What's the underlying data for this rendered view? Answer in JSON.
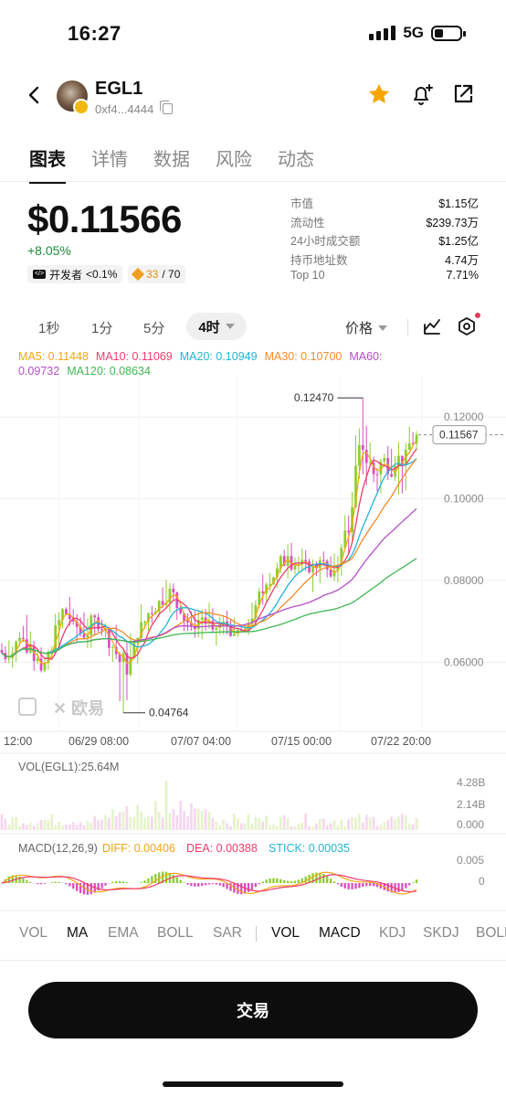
{
  "status_bar": {
    "time": "16:27",
    "network": "5G"
  },
  "token": {
    "name": "EGL1",
    "address": "0xf4...4444"
  },
  "tabs": [
    "图表",
    "详情",
    "数据",
    "风险",
    "动态"
  ],
  "price": {
    "value": "$0.11566",
    "change": "+8.05%"
  },
  "badges": {
    "dev_label": "开发者",
    "dev_value": "<0.1%",
    "holders_count": "33",
    "holders_total": "/ 70"
  },
  "stats": [
    {
      "label": "市值",
      "value": "$1.15亿"
    },
    {
      "label": "流动性",
      "value": "$239.73万"
    },
    {
      "label": "24小时成交额",
      "value": "$1.25亿"
    },
    {
      "label": "持币地址数",
      "value": "4.74万"
    },
    {
      "label": "Top 10",
      "value": "7.71%"
    }
  ],
  "intervals": [
    "1秒",
    "1分",
    "5分"
  ],
  "active_interval": "4时",
  "price_select": "价格",
  "ma_legend": {
    "ma5": "MA5: 0.11448",
    "ma10": "MA10: 0.11069",
    "ma20": "MA20: 0.10949",
    "ma30": "MA30: 0.10700",
    "ma60": "MA60: 0.09732",
    "ma120": "MA120: 0.08634"
  },
  "colors": {
    "ma5": "#f2a516",
    "ma10": "#ef3c6c",
    "ma20": "#23b4d6",
    "ma30": "#f28c28",
    "ma60": "#b44fc7",
    "ma120": "#3fb850",
    "up": "#8ccf2f",
    "down": "#d94fc0"
  },
  "chart_data": {
    "type": "candlestick",
    "y_ticks": [
      "0.12000",
      "0.10000",
      "0.08000",
      "0.06000"
    ],
    "x_ticks": [
      "12:00",
      "06/29 08:00",
      "07/07 04:00",
      "07/15 00:00",
      "07/22 20:00"
    ],
    "ylim": [
      0.044,
      0.129
    ],
    "max_label": "0.12470",
    "min_label": "0.04764",
    "current_label": "0.11567",
    "max": 0.1247,
    "min": 0.04764,
    "current": 0.11567,
    "ohlc_approx": [
      [
        0.063,
        0.066,
        0.059,
        0.061
      ],
      [
        0.061,
        0.068,
        0.058,
        0.066
      ],
      [
        0.066,
        0.072,
        0.062,
        0.064
      ],
      [
        0.064,
        0.067,
        0.056,
        0.058
      ],
      [
        0.058,
        0.064,
        0.055,
        0.063
      ],
      [
        0.063,
        0.075,
        0.061,
        0.073
      ],
      [
        0.073,
        0.078,
        0.068,
        0.07
      ],
      [
        0.07,
        0.074,
        0.064,
        0.066
      ],
      [
        0.066,
        0.072,
        0.063,
        0.071
      ],
      [
        0.071,
        0.074,
        0.066,
        0.068
      ],
      [
        0.068,
        0.07,
        0.06,
        0.062
      ],
      [
        0.062,
        0.066,
        0.048,
        0.057
      ],
      [
        0.057,
        0.068,
        0.055,
        0.066
      ],
      [
        0.066,
        0.075,
        0.064,
        0.072
      ],
      [
        0.072,
        0.078,
        0.069,
        0.075
      ],
      [
        0.075,
        0.082,
        0.072,
        0.078
      ],
      [
        0.078,
        0.08,
        0.07,
        0.072
      ],
      [
        0.072,
        0.075,
        0.066,
        0.069
      ],
      [
        0.069,
        0.073,
        0.065,
        0.071
      ],
      [
        0.071,
        0.075,
        0.067,
        0.068
      ],
      [
        0.068,
        0.072,
        0.064,
        0.07
      ],
      [
        0.07,
        0.073,
        0.066,
        0.067
      ],
      [
        0.067,
        0.07,
        0.063,
        0.068
      ],
      [
        0.068,
        0.076,
        0.066,
        0.074
      ],
      [
        0.074,
        0.082,
        0.072,
        0.079
      ],
      [
        0.079,
        0.086,
        0.076,
        0.083
      ],
      [
        0.083,
        0.09,
        0.08,
        0.086
      ],
      [
        0.086,
        0.092,
        0.081,
        0.084
      ],
      [
        0.084,
        0.088,
        0.079,
        0.082
      ],
      [
        0.082,
        0.086,
        0.077,
        0.085
      ],
      [
        0.085,
        0.088,
        0.08,
        0.081
      ],
      [
        0.081,
        0.09,
        0.079,
        0.088
      ],
      [
        0.088,
        0.102,
        0.086,
        0.098
      ],
      [
        0.098,
        0.125,
        0.095,
        0.112
      ],
      [
        0.112,
        0.118,
        0.102,
        0.106
      ],
      [
        0.106,
        0.112,
        0.098,
        0.11
      ],
      [
        0.11,
        0.116,
        0.103,
        0.108
      ],
      [
        0.108,
        0.114,
        0.1,
        0.112
      ],
      [
        0.112,
        0.118,
        0.108,
        0.1157
      ]
    ],
    "volume": {
      "label": "VOL(EGL1):25.64M",
      "ticks": [
        "4.28B",
        "2.14B",
        "0.000"
      ]
    },
    "macd": {
      "title": "MACD(12,26,9)",
      "diff": "DIFF: 0.00406",
      "dea": "DEA: 0.00388",
      "stick": "STICK: 0.00035",
      "ticks": [
        "0.005",
        "0"
      ]
    }
  },
  "indicators_main": [
    "VOL",
    "MA",
    "EMA",
    "BOLL",
    "SAR"
  ],
  "indicators_sub": [
    "VOL",
    "MACD",
    "KDJ",
    "SKDJ",
    "BOLL"
  ],
  "trade_button": "交易"
}
